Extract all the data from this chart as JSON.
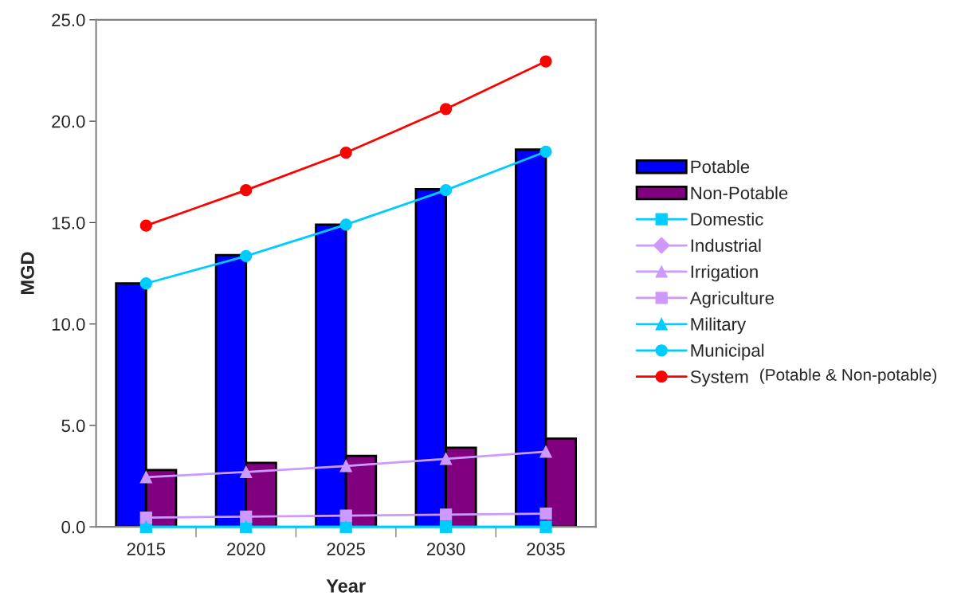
{
  "chart_data": {
    "type": "bar",
    "xlabel": "Year",
    "ylabel": "MGD",
    "categories": [
      "2015",
      "2020",
      "2025",
      "2030",
      "2035"
    ],
    "ylim": [
      0,
      25
    ],
    "yticks": [
      {
        "value": 0,
        "label": "0.0"
      },
      {
        "value": 5,
        "label": "5.0"
      },
      {
        "value": 10,
        "label": "10.0"
      },
      {
        "value": 15,
        "label": "15.0"
      },
      {
        "value": 20,
        "label": "20.0"
      },
      {
        "value": 25,
        "label": "25.0"
      }
    ],
    "grid": false,
    "legend": "right",
    "series": [
      {
        "name": "Potable",
        "color": "#0000ff",
        "values": [
          12.0,
          13.4,
          14.9,
          16.65,
          18.6
        ]
      },
      {
        "name": "Non-Potable",
        "color": "#800080",
        "values": [
          2.8,
          3.15,
          3.5,
          3.9,
          4.35
        ]
      },
      {
        "name": "Domestic",
        "type": "line",
        "color": "#00ccff",
        "marker": "square",
        "values": [
          0.0,
          0.0,
          0.0,
          0.0,
          0.0
        ]
      },
      {
        "name": "Industrial",
        "type": "line",
        "color": "#cc99ff",
        "marker": "diamond",
        "values": [
          null,
          null,
          null,
          null,
          null
        ]
      },
      {
        "name": "Irrigation",
        "type": "line",
        "color": "#cc99ff",
        "marker": "triangle",
        "values": [
          2.45,
          2.7,
          3.0,
          3.35,
          3.7
        ]
      },
      {
        "name": "Agriculture",
        "type": "line",
        "color": "#cc99ff",
        "marker": "square",
        "values": [
          0.45,
          0.5,
          0.55,
          0.6,
          0.65
        ]
      },
      {
        "name": "Military",
        "type": "line",
        "color": "#00ccff",
        "marker": "triangle",
        "values": [
          0.0,
          0.0,
          0.0,
          0.0,
          0.0
        ]
      },
      {
        "name": "Municipal",
        "type": "line",
        "color": "#00ccff",
        "marker": "circle",
        "values": [
          12.0,
          13.35,
          14.9,
          16.6,
          18.5
        ]
      },
      {
        "name": "System",
        "type": "line",
        "color": "#ff0000",
        "marker": "circle",
        "values": [
          14.85,
          16.6,
          18.45,
          20.6,
          22.95
        ]
      }
    ],
    "annotations": [
      "(Potable & Non-potable)"
    ]
  }
}
